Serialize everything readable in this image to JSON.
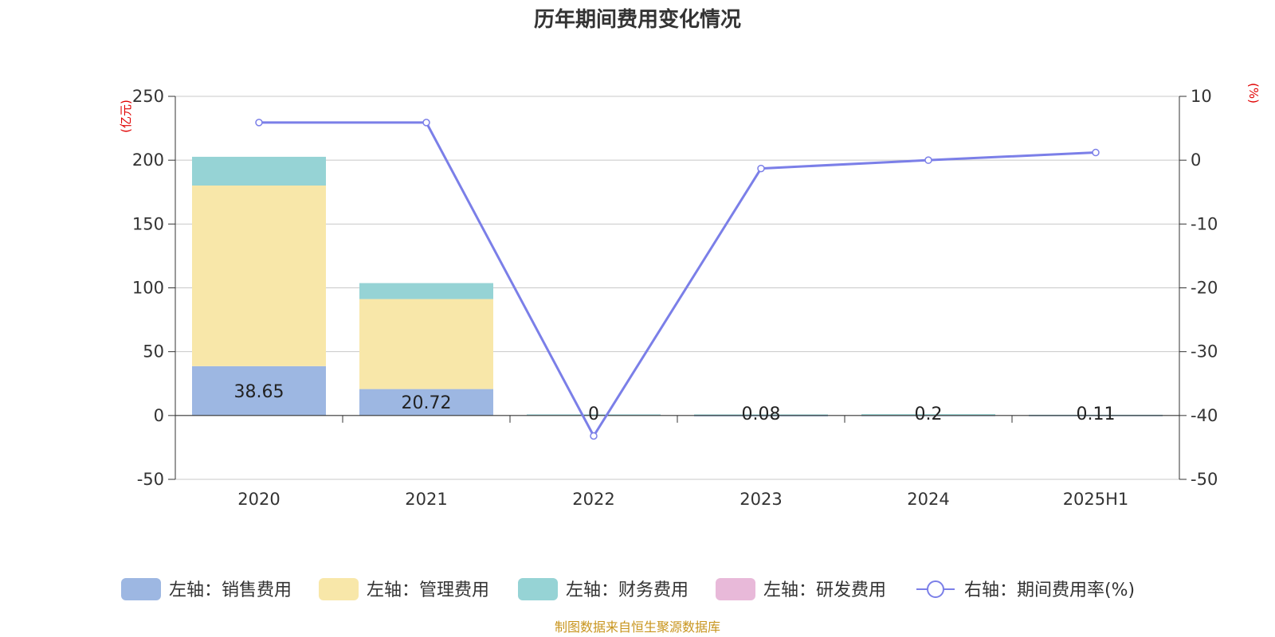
{
  "chart_data": {
    "type": "bar",
    "title": "历年期间费用变化情况",
    "categories": [
      "2020",
      "2021",
      "2022",
      "2023",
      "2024",
      "2025H1"
    ],
    "left_axis": {
      "unit": "(亿元)",
      "ylim": [
        -50,
        250
      ],
      "ticks": [
        "250",
        "200",
        "150",
        "100",
        "50",
        "0",
        "-50"
      ],
      "tick_values": [
        250,
        200,
        150,
        100,
        50,
        0,
        -50
      ]
    },
    "right_axis": {
      "unit": "(%)",
      "ylim": [
        -50,
        10
      ],
      "ticks": [
        "10",
        "0",
        "-10",
        "-20",
        "-30",
        "-40",
        "-50"
      ],
      "tick_values": [
        10,
        0,
        -10,
        -20,
        -30,
        -40,
        -50
      ]
    },
    "series": [
      {
        "name": "左轴：销售费用",
        "color": "#9db7e2",
        "axis": "left",
        "values": [
          38.65,
          20.72,
          0,
          0.08,
          0.2,
          0.11
        ],
        "labels": [
          "38.65",
          "20.72",
          "0",
          "0.08",
          "0.2",
          "0.11"
        ]
      },
      {
        "name": "左轴：管理费用",
        "color": "#f8e7a9",
        "axis": "left",
        "values": [
          141.5,
          70.5,
          0.6,
          0.5,
          0.6,
          0.3
        ]
      },
      {
        "name": "左轴：财务费用",
        "color": "#96d3d5",
        "axis": "left",
        "values": [
          22.5,
          12.5,
          0.3,
          0.3,
          0.3,
          0.2
        ]
      },
      {
        "name": "左轴：研发费用",
        "color": "#e8b9d9",
        "axis": "left",
        "values": [
          0,
          0,
          0,
          0,
          0,
          0
        ]
      },
      {
        "name": "右轴：期间费用率(%)",
        "color": "#7b7fe8",
        "axis": "right",
        "type": "line",
        "values": [
          5.9,
          5.9,
          -43.2,
          -1.3,
          0.0,
          1.2
        ]
      }
    ],
    "grid": true,
    "legend_position": "bottom"
  },
  "footer": {
    "source": "制图数据来自恒生聚源数据库"
  }
}
